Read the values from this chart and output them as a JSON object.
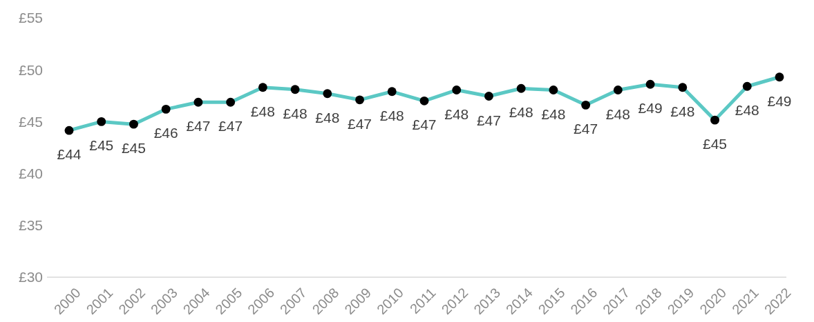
{
  "chart_data": {
    "type": "line",
    "categories": [
      "2000",
      "2001",
      "2002",
      "2003",
      "2004",
      "2005",
      "2006",
      "2007",
      "2008",
      "2009",
      "2010",
      "2011",
      "2012",
      "2013",
      "2014",
      "2015",
      "2016",
      "2017",
      "2018",
      "2019",
      "2020",
      "2021",
      "2022"
    ],
    "series": [
      {
        "color": "#5bc8c4",
        "values": [
          44.15,
          45.0,
          44.75,
          46.2,
          46.87,
          46.87,
          48.3,
          48.1,
          47.7,
          47.1,
          47.9,
          47.0,
          48.05,
          47.45,
          48.2,
          48.05,
          46.6,
          48.05,
          48.6,
          48.3,
          45.15,
          48.4,
          49.3
        ],
        "value_labels": [
          "£44",
          "£45",
          "£45",
          "£46",
          "£47",
          "£47",
          "£48",
          "£48",
          "£48",
          "£47",
          "£48",
          "£47",
          "£48",
          "£47",
          "£48",
          "£48",
          "£47",
          "£48",
          "£49",
          "£48",
          "£45",
          "£48",
          "£49"
        ]
      }
    ],
    "ylim": [
      30,
      55
    ],
    "yticks": [
      {
        "value": 30,
        "label": "£30"
      },
      {
        "value": 35,
        "label": "£35"
      },
      {
        "value": 40,
        "label": "£40"
      },
      {
        "value": 45,
        "label": "£45"
      },
      {
        "value": 50,
        "label": "£50"
      },
      {
        "value": 55,
        "label": "£55"
      }
    ],
    "grid": false,
    "marker": "circle",
    "line_style": "solid"
  }
}
